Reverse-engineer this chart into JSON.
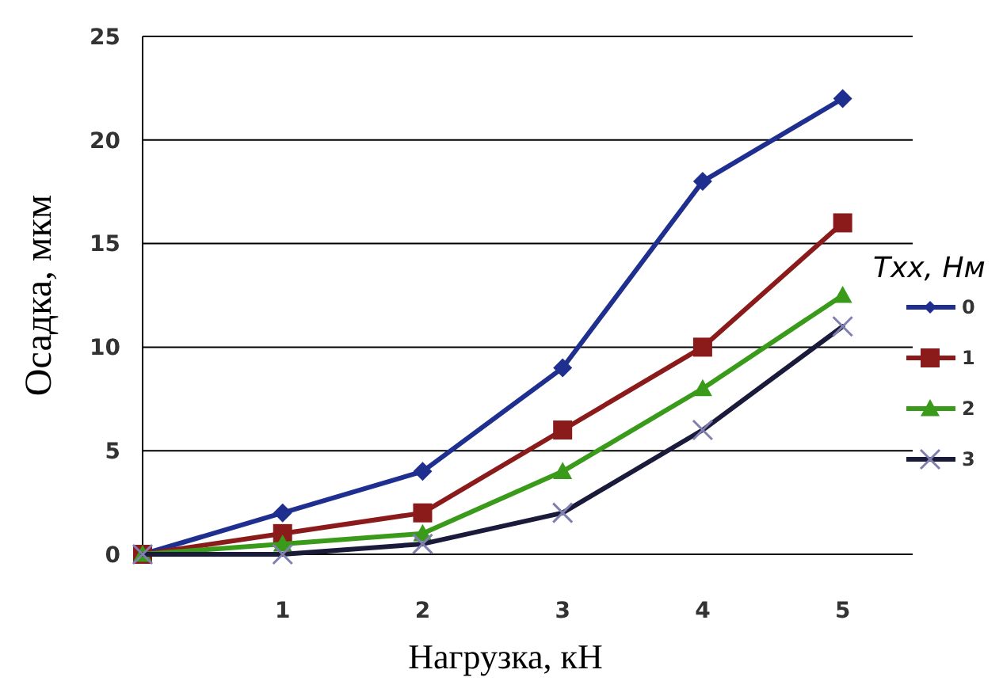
{
  "chart_data": {
    "type": "line",
    "xlabel": "Нагрузка, кН",
    "ylabel": "Осадка, мкм",
    "legend_title": "Тхх, Нм",
    "legend": "right",
    "grid": "y",
    "x": [
      0,
      1,
      2,
      3,
      4,
      5
    ],
    "xlim": [
      0,
      5.5
    ],
    "xticks": [
      1,
      2,
      3,
      4,
      5
    ],
    "ylim": [
      0,
      25
    ],
    "yticks": [
      0,
      5,
      10,
      15,
      20,
      25
    ],
    "series": [
      {
        "name": "0",
        "color": "#1f2f8f",
        "marker": "diamond",
        "values": [
          0,
          2,
          4,
          9,
          18,
          22
        ]
      },
      {
        "name": "1",
        "color": "#8b1a1a",
        "marker": "square",
        "values": [
          0,
          1,
          2,
          6,
          10,
          16
        ]
      },
      {
        "name": "2",
        "color": "#3a9a1a",
        "marker": "triangle",
        "values": [
          0,
          0.5,
          1,
          4,
          8,
          12.5
        ]
      },
      {
        "name": "3",
        "color": "#1a1a3a",
        "marker": "cross",
        "values": [
          0,
          0,
          0.5,
          2,
          6,
          11
        ]
      }
    ]
  }
}
